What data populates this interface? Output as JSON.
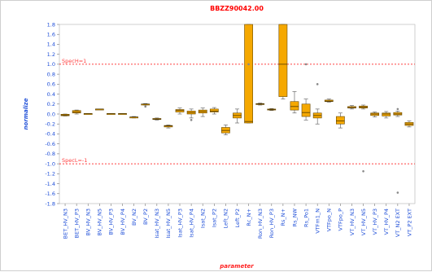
{
  "chart_data": {
    "type": "box",
    "title": "BBZZ90042.00",
    "xlabel": "parameter",
    "ylabel": "normalize",
    "ylim": [
      -1.8,
      1.8
    ],
    "yticks": [
      "1.8",
      "1.6",
      "1.4",
      "1.2",
      "1.0",
      "0.8",
      "0.6",
      "0.4",
      "0.2",
      "0.0",
      "-0.2",
      "-0.4",
      "-0.6",
      "-0.8",
      "-1.0",
      "-1.2",
      "-1.4",
      "-1.6",
      "-1.8"
    ],
    "spec_lines": [
      {
        "label": "SpecH=1",
        "value": 1.0
      },
      {
        "label": "SpecL=-1",
        "value": -1.0
      }
    ],
    "colors": {
      "box_fill": "#f5a800",
      "box_edge": "#6b4a00",
      "spec": "#ff0000",
      "axis_text": "#1f4fd8"
    },
    "categories": [
      "BET_HV_N3",
      "BET_HV_P3",
      "BV_HV_N3",
      "BV_HV_N5",
      "BV_HV_P3",
      "BV_HV_P4",
      "BV_N2",
      "BV_P2",
      "Isat_HV_N3",
      "Isat_HV_N5",
      "Isat_HV_P3",
      "Isat_HV_P4",
      "Isat_N2",
      "Isat_P2",
      "Left_N2",
      "Left_P2",
      "Rc_N+",
      "Ron_HV_N3",
      "Ron_HV_P3",
      "Rs_N+",
      "Rs_NW",
      "Rs_Po1",
      "VTFm1_N",
      "VTFpo_N",
      "VTFpo_P",
      "VT_HV_N3",
      "VT_HV_N5",
      "VT_HV_P3",
      "VT_HV_P4",
      "VT_N2 EXT",
      "VT_P2 EXT"
    ],
    "boxes": [
      {
        "min": -0.04,
        "q1": -0.035,
        "median": -0.02,
        "q3": -0.005,
        "max": 0.0,
        "outliers": []
      },
      {
        "min": 0.0,
        "q1": 0.02,
        "median": 0.04,
        "q3": 0.07,
        "max": 0.08,
        "outliers": []
      },
      {
        "min": 0.01,
        "q1": 0.01,
        "median": 0.01,
        "q3": 0.01,
        "max": 0.01,
        "outliers": []
      },
      {
        "min": 0.1,
        "q1": 0.1,
        "median": 0.1,
        "q3": 0.1,
        "max": 0.1,
        "outliers": []
      },
      {
        "min": 0.01,
        "q1": 0.01,
        "median": 0.01,
        "q3": 0.01,
        "max": 0.01,
        "outliers": []
      },
      {
        "min": 0.01,
        "q1": 0.01,
        "median": 0.01,
        "q3": 0.01,
        "max": 0.01,
        "outliers": []
      },
      {
        "min": -0.08,
        "q1": -0.07,
        "median": -0.06,
        "q3": -0.06,
        "max": -0.05,
        "outliers": []
      },
      {
        "min": 0.18,
        "q1": 0.19,
        "median": 0.2,
        "q3": 0.2,
        "max": 0.21,
        "outliers": [
          0.15
        ]
      },
      {
        "min": -0.12,
        "q1": -0.11,
        "median": -0.1,
        "q3": -0.09,
        "max": -0.08,
        "outliers": []
      },
      {
        "min": -0.28,
        "q1": -0.26,
        "median": -0.24,
        "q3": -0.23,
        "max": -0.22,
        "outliers": []
      },
      {
        "min": 0.0,
        "q1": 0.04,
        "median": 0.07,
        "q3": 0.09,
        "max": 0.12,
        "outliers": []
      },
      {
        "min": -0.08,
        "q1": 0.0,
        "median": 0.03,
        "q3": 0.06,
        "max": 0.1,
        "outliers": [
          -0.12
        ]
      },
      {
        "min": -0.05,
        "q1": 0.02,
        "median": 0.05,
        "q3": 0.08,
        "max": 0.12,
        "outliers": []
      },
      {
        "min": 0.0,
        "q1": 0.04,
        "median": 0.06,
        "q3": 0.1,
        "max": 0.13,
        "outliers": []
      },
      {
        "min": -0.42,
        "q1": -0.38,
        "median": -0.33,
        "q3": -0.27,
        "max": -0.22,
        "outliers": []
      },
      {
        "min": -0.18,
        "q1": -0.08,
        "median": -0.03,
        "q3": 0.02,
        "max": 0.1,
        "outliers": []
      },
      {
        "min": -0.18,
        "q1": -0.18,
        "median": -0.15,
        "q3": 1.8,
        "max": 1.8,
        "outliers": [
          1.0
        ]
      },
      {
        "min": 0.18,
        "q1": 0.19,
        "median": 0.2,
        "q3": 0.21,
        "max": 0.22,
        "outliers": []
      },
      {
        "min": 0.07,
        "q1": 0.08,
        "median": 0.09,
        "q3": 0.1,
        "max": 0.11,
        "outliers": []
      },
      {
        "min": 0.3,
        "q1": 0.35,
        "median": 1.0,
        "q3": 1.8,
        "max": 1.8,
        "outliers": []
      },
      {
        "min": 0.02,
        "q1": 0.08,
        "median": 0.15,
        "q3": 0.25,
        "max": 0.45,
        "outliers": []
      },
      {
        "min": -0.12,
        "q1": -0.05,
        "median": 0.03,
        "q3": 0.2,
        "max": 0.3,
        "outliers": [
          1.0
        ]
      },
      {
        "min": -0.2,
        "q1": -0.08,
        "median": -0.03,
        "q3": 0.02,
        "max": 0.1,
        "outliers": [
          0.6
        ]
      },
      {
        "min": 0.24,
        "q1": 0.25,
        "median": 0.26,
        "q3": 0.28,
        "max": 0.3,
        "outliers": []
      },
      {
        "min": -0.28,
        "q1": -0.2,
        "median": -0.14,
        "q3": -0.05,
        "max": 0.02,
        "outliers": []
      },
      {
        "min": 0.1,
        "q1": 0.12,
        "median": 0.13,
        "q3": 0.15,
        "max": 0.17,
        "outliers": []
      },
      {
        "min": 0.1,
        "q1": 0.12,
        "median": 0.14,
        "q3": 0.16,
        "max": 0.18,
        "outliers": [
          -1.15
        ]
      },
      {
        "min": -0.06,
        "q1": -0.03,
        "median": 0.0,
        "q3": 0.02,
        "max": 0.04,
        "outliers": []
      },
      {
        "min": -0.08,
        "q1": -0.04,
        "median": 0.0,
        "q3": 0.02,
        "max": 0.05,
        "outliers": []
      },
      {
        "min": -0.05,
        "q1": -0.02,
        "median": 0.0,
        "q3": 0.03,
        "max": 0.06,
        "outliers": [
          0.1,
          -1.58
        ]
      },
      {
        "min": -0.26,
        "q1": -0.23,
        "median": -0.2,
        "q3": -0.17,
        "max": -0.14,
        "outliers": []
      }
    ]
  }
}
